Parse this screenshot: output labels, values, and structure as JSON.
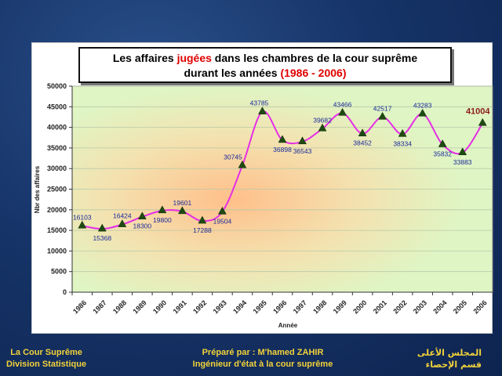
{
  "chart_data": {
    "type": "line",
    "title_parts": [
      {
        "text": "Les affaires ",
        "highlight": false
      },
      {
        "text": "jugées",
        "highlight": true
      },
      {
        "text": " dans les chambres de la cour suprême",
        "highlight": false
      }
    ],
    "title_line2_parts": [
      {
        "text": "durant les années ",
        "highlight": false
      },
      {
        "text": "(1986 - 2006)",
        "highlight": true
      }
    ],
    "xlabel": "Année",
    "ylabel": "Nbr des affaires",
    "ylim": [
      0,
      50000
    ],
    "yticks": [
      0,
      5000,
      10000,
      15000,
      20000,
      25000,
      30000,
      35000,
      40000,
      45000,
      50000
    ],
    "categories": [
      "1986",
      "1987",
      "1988",
      "1989",
      "1990",
      "1991",
      "1992",
      "1993",
      "1994",
      "1995",
      "1996",
      "1997",
      "1998",
      "1999",
      "2000",
      "2001",
      "2002",
      "2003",
      "2004",
      "2005",
      "2006"
    ],
    "values": [
      16103,
      15368,
      16424,
      18300,
      19800,
      19601,
      17288,
      19504,
      30745,
      43785,
      36898,
      36543,
      39682,
      43466,
      38452,
      42517,
      38334,
      43283,
      35832,
      33883,
      41004
    ],
    "last_value_label": "41004",
    "grid": true,
    "colors": {
      "line": "#e62ee6",
      "marker": "#1f4a12",
      "label": "#1a2a9a",
      "last_label": "#8b1a1a",
      "plot_bg": "#dff5c4",
      "plot_glow": "#ffbf8a",
      "highlight_text": "#e00000"
    }
  },
  "footer": {
    "left_line1": "La Cour Suprême",
    "left_line2": "Division Statistique",
    "mid_line1": "Préparé par : M'hamed ZAHIR",
    "mid_line2": "Ingénieur d'état à la cour suprême",
    "right_line1": "المجلس الأعلى",
    "right_line2": "قسم الإحصاء"
  }
}
